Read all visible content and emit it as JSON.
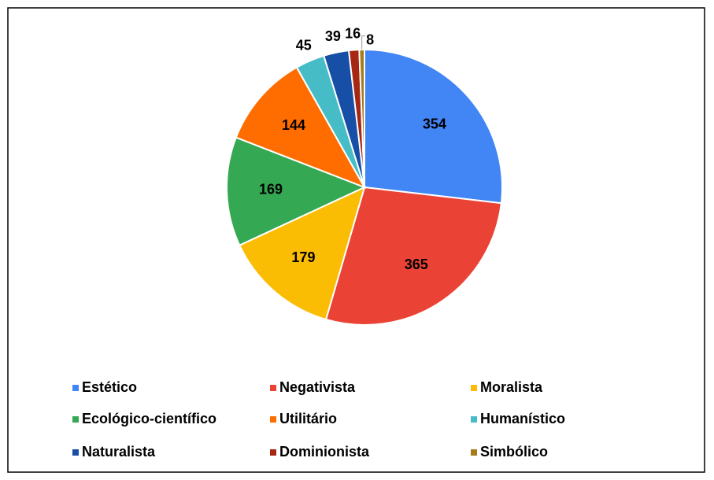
{
  "chart_data": {
    "type": "pie",
    "categories": [
      "Estético",
      "Negativista",
      "Moralista",
      "Ecológico-científico",
      "Utilitário",
      "Humanístico",
      "Naturalista",
      "Dominionista",
      "Simbólico"
    ],
    "values": [
      354,
      365,
      179,
      169,
      144,
      45,
      39,
      16,
      8
    ],
    "colors": [
      "#4285f4",
      "#ea4335",
      "#fbbc04",
      "#34a853",
      "#ff6d01",
      "#46bdc6",
      "#174ea6",
      "#a52714",
      "#a57c1b"
    ],
    "legend": "bottom"
  }
}
